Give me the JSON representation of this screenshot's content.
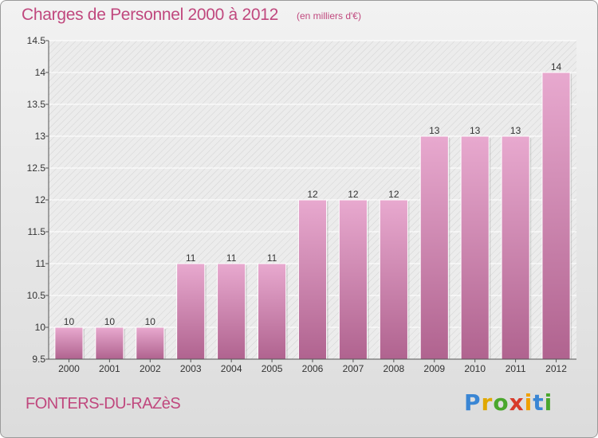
{
  "title": "Charges de Personnel 2000 à 2012",
  "unit": "(en milliers d'€)",
  "location": "FONTERS-DU-RAZèS",
  "logo": {
    "letters": [
      {
        "char": "P",
        "color": "#3a86d4"
      },
      {
        "char": "r",
        "color": "#e0a800"
      },
      {
        "char": "o",
        "color": "#4aa72d"
      },
      {
        "char": "x",
        "color": "#d83b2b"
      },
      {
        "char": "i",
        "color": "#f0a000"
      },
      {
        "char": "t",
        "color": "#3a86d4"
      },
      {
        "char": "i",
        "color": "#4aa72d"
      }
    ]
  },
  "colors": {
    "bar_top": "#e8a9cf",
    "bar_bottom": "#b0638f",
    "text_accent": "#c0487e",
    "axis": "#555555"
  },
  "chart_data": {
    "type": "bar",
    "categories": [
      "2000",
      "2001",
      "2002",
      "2003",
      "2004",
      "2005",
      "2006",
      "2007",
      "2008",
      "2009",
      "2010",
      "2011",
      "2012"
    ],
    "values": [
      10,
      10,
      10,
      11,
      11,
      11,
      12,
      12,
      12,
      13,
      13,
      13,
      14
    ],
    "data_labels": [
      "10",
      "10",
      "10",
      "11",
      "11",
      "11",
      "12",
      "12",
      "12",
      "13",
      "13",
      "13",
      "14"
    ],
    "ylim": [
      9.5,
      14.5
    ],
    "yticks": [
      9.5,
      10,
      10.5,
      11,
      11.5,
      12,
      12.5,
      13,
      13.5,
      14,
      14.5
    ],
    "ytick_labels": [
      "9.5",
      "10",
      "10.5",
      "11",
      "11.5",
      "12",
      "12.5",
      "13",
      "13.5",
      "14",
      "14.5"
    ],
    "grid": true
  }
}
